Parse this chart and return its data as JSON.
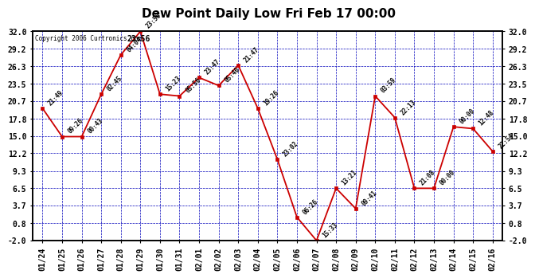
{
  "title": "Dew Point Daily Low Fri Feb 17 00:00",
  "copyright_text": "Copyright 2006 Curtronics.com",
  "time_text": "23:56",
  "x_labels": [
    "01/24",
    "01/25",
    "01/26",
    "01/27",
    "01/28",
    "01/29",
    "01/30",
    "01/31",
    "02/01",
    "02/02",
    "02/03",
    "02/04",
    "02/05",
    "02/06",
    "02/07",
    "02/08",
    "02/09",
    "02/10",
    "02/11",
    "02/12",
    "02/13",
    "02/14",
    "02/15",
    "02/16"
  ],
  "y_values": [
    19.5,
    14.9,
    14.9,
    21.8,
    28.2,
    32.0,
    21.8,
    21.5,
    24.5,
    23.2,
    26.5,
    19.5,
    11.2,
    1.8,
    -2.0,
    6.5,
    3.2,
    21.5,
    18.0,
    6.5,
    6.5,
    16.5,
    16.2,
    12.5
  ],
  "point_labels": [
    "21:49",
    "09:26",
    "00:43",
    "02:45",
    "04:04",
    "23:56",
    "15:23",
    "05:56",
    "23:47",
    "05:40",
    "21:47",
    "19:26",
    "23:02",
    "06:26",
    "15:33",
    "13:21",
    "09:41",
    "03:59",
    "22:13",
    "21:08",
    "00:00",
    "00:00",
    "12:48",
    "22:54"
  ],
  "y_ticks": [
    -2.0,
    0.8,
    3.7,
    6.5,
    9.3,
    12.2,
    15.0,
    17.8,
    20.7,
    23.5,
    26.3,
    29.2,
    32.0
  ],
  "line_color": "#cc0000",
  "marker_color": "#cc0000",
  "grid_color": "#0000bb",
  "bg_color": "#ffffff",
  "plot_bg_color": "#ffffff",
  "title_fontsize": 11,
  "tick_fontsize": 7
}
